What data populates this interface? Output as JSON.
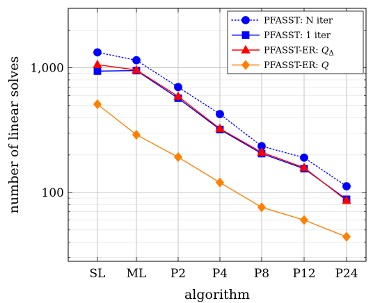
{
  "chart_data": {
    "type": "line",
    "title": "",
    "xlabel": "algorithm",
    "ylabel": "number of linear solves",
    "yscale": "log",
    "ylim": [
      28,
      3000
    ],
    "categories": [
      "SL",
      "ML",
      "P2",
      "P4",
      "P8",
      "P12",
      "P24"
    ],
    "yticks": [
      100,
      1000
    ],
    "ytick_labels": [
      "100",
      "1,000"
    ],
    "grid": true,
    "legend_position": "top-right",
    "series": [
      {
        "name": "PFASST: N iter",
        "color": "#0000ff",
        "line_style": "dotted",
        "marker": "circle",
        "values": [
          1330,
          1150,
          700,
          425,
          235,
          190,
          112
        ]
      },
      {
        "name": "PFASST: 1 iter",
        "color": "#0000ff",
        "line_style": "solid",
        "marker": "square",
        "values": [
          940,
          950,
          570,
          320,
          205,
          155,
          88
        ]
      },
      {
        "name": "PFASST-ER: Q_Δ",
        "color": "#ff0000",
        "line_style": "solid",
        "marker": "triangle",
        "values": [
          1060,
          960,
          590,
          325,
          210,
          158,
          86
        ]
      },
      {
        "name": "PFASST-ER: Q",
        "color": "#ff8000",
        "line_style": "solid",
        "marker": "diamond",
        "values": [
          510,
          290,
          192,
          120,
          76,
          60,
          44
        ]
      }
    ]
  }
}
